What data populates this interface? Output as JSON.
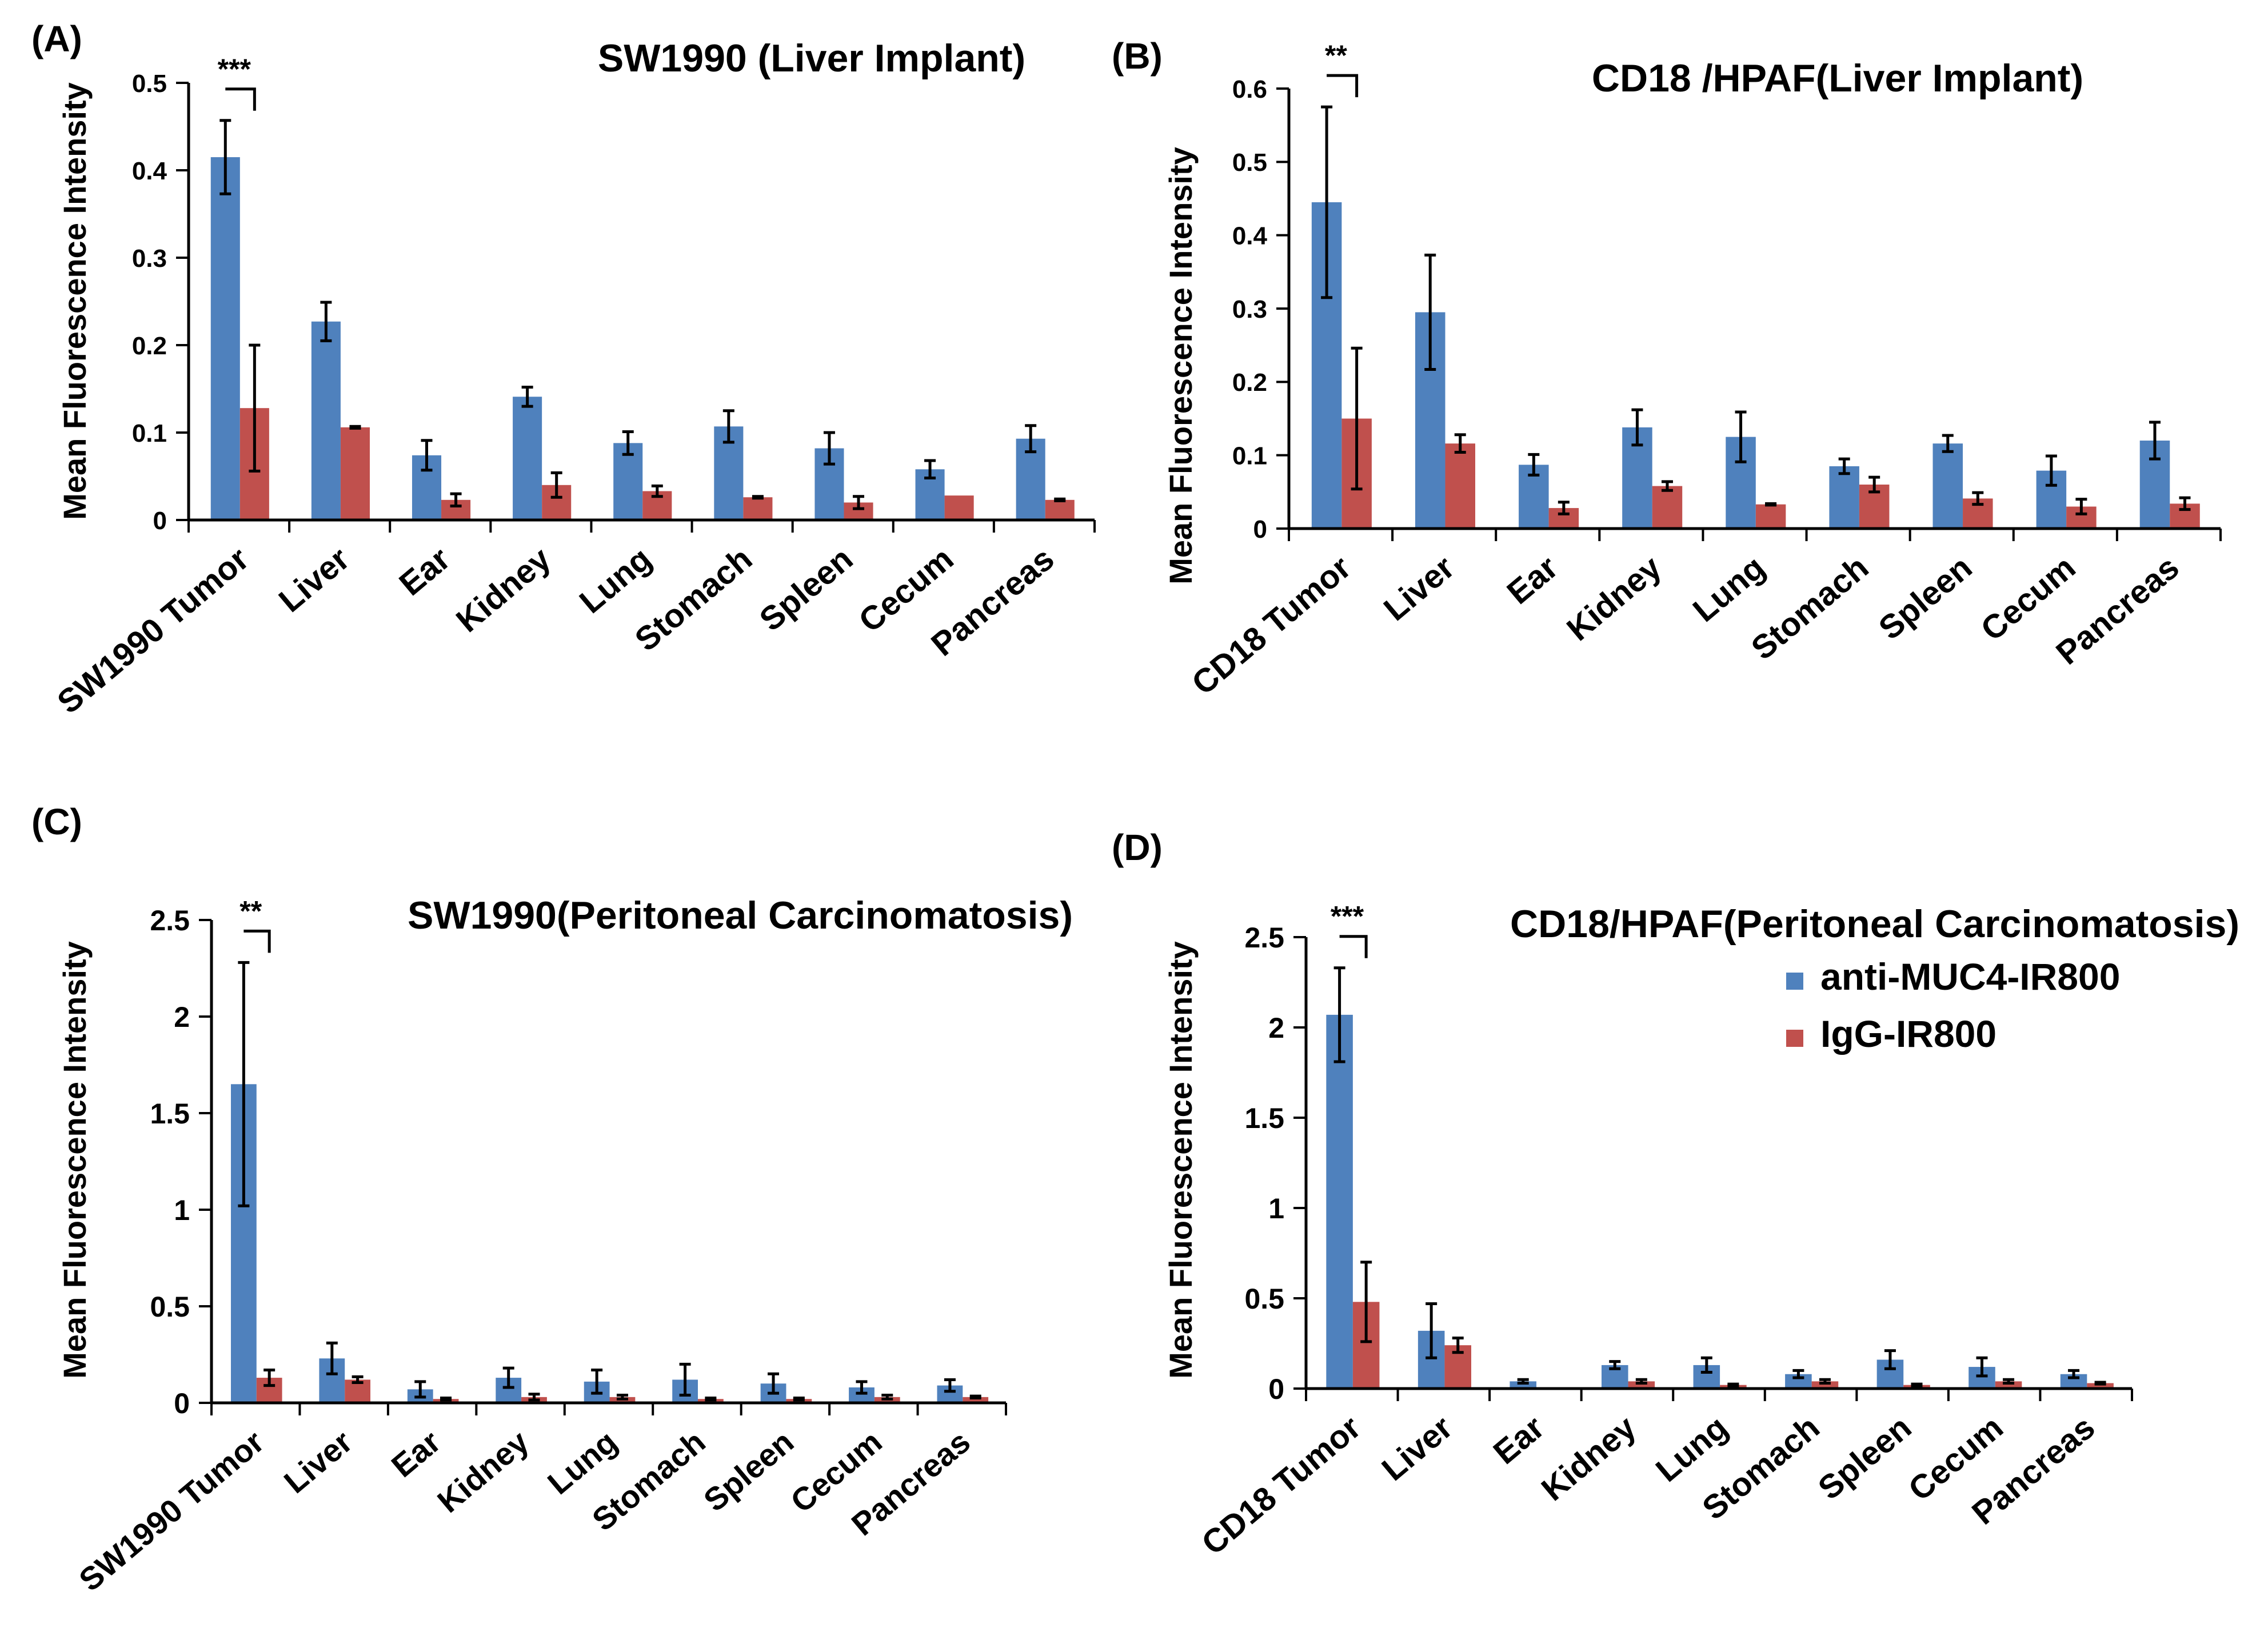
{
  "colors": {
    "series_a": "#4F81BD",
    "series_b": "#C0504D",
    "axis": "#000000"
  },
  "legend": {
    "panel": 3,
    "items": [
      "anti-MUC4-IR800",
      "IgG-IR800"
    ]
  },
  "chart_data": [
    {
      "type": "bar",
      "panel_label": "(A)",
      "title": "SW1990 (Liver Implant)",
      "ylabel": "Mean Fluorescence Intensity",
      "xlabel": "",
      "ylim": [
        0,
        0.5
      ],
      "yticks": [
        "0",
        "0.1",
        "0.2",
        "0.3",
        "0.4",
        "0.5"
      ],
      "categories": [
        "SW1990 Tumor",
        "Liver",
        "Ear",
        "Kidney",
        "Lung",
        "Stomach",
        "Spleen",
        "Cecum",
        "Pancreas"
      ],
      "series": [
        {
          "name": "anti-MUC4-IR800",
          "values": [
            0.415,
            0.227,
            0.074,
            0.141,
            0.088,
            0.107,
            0.082,
            0.058,
            0.093
          ],
          "errors": [
            0.042,
            0.022,
            0.017,
            0.011,
            0.013,
            0.018,
            0.018,
            0.01,
            0.015
          ]
        },
        {
          "name": "IgG-IR800",
          "values": [
            0.128,
            0.106,
            0.023,
            0.04,
            0.033,
            0.026,
            0.02,
            0.028,
            0.023
          ],
          "errors": [
            0.072,
            0.001,
            0.007,
            0.014,
            0.006,
            0.001,
            0.007,
            0.0,
            0.001
          ]
        }
      ],
      "significance": {
        "label": "***",
        "category_index": 0
      }
    },
    {
      "type": "bar",
      "panel_label": "(B)",
      "title": "CD18 /HPAF(Liver Implant)",
      "ylabel": "Mean Fluorescence Intensity",
      "xlabel": "",
      "ylim": [
        0,
        0.6
      ],
      "yticks": [
        "0",
        "0.1",
        "0.2",
        "0.3",
        "0.4",
        "0.5",
        "0.6"
      ],
      "categories": [
        "CD18 Tumor",
        "Liver",
        "Ear",
        "Kidney",
        "Lung",
        "Stomach",
        "Spleen",
        "Cecum",
        "Pancreas"
      ],
      "series": [
        {
          "name": "anti-MUC4-IR800",
          "values": [
            0.445,
            0.295,
            0.087,
            0.138,
            0.125,
            0.085,
            0.116,
            0.079,
            0.12
          ],
          "errors": [
            0.13,
            0.078,
            0.014,
            0.024,
            0.034,
            0.01,
            0.011,
            0.02,
            0.025
          ]
        },
        {
          "name": "IgG-IR800",
          "values": [
            0.15,
            0.116,
            0.028,
            0.058,
            0.033,
            0.06,
            0.041,
            0.03,
            0.034
          ],
          "errors": [
            0.096,
            0.012,
            0.008,
            0.006,
            0.001,
            0.01,
            0.008,
            0.01,
            0.008
          ]
        }
      ],
      "significance": {
        "label": "**",
        "category_index": 0
      }
    },
    {
      "type": "bar",
      "panel_label": "(C)",
      "title": "SW1990(Peritoneal Carcinomatosis)",
      "ylabel": "Mean Fluorescence Intensity",
      "xlabel": "",
      "ylim": [
        0,
        2.5
      ],
      "yticks": [
        "0",
        "0.5",
        "1",
        "1.5",
        "2",
        "2.5"
      ],
      "categories": [
        "SW1990 Tumor",
        "Liver",
        "Ear",
        "Kidney",
        "Lung",
        "Stomach",
        "Spleen",
        "Cecum",
        "Pancreas"
      ],
      "series": [
        {
          "name": "anti-MUC4-IR800",
          "values": [
            1.65,
            0.23,
            0.07,
            0.13,
            0.11,
            0.12,
            0.1,
            0.08,
            0.09
          ],
          "errors": [
            0.63,
            0.08,
            0.04,
            0.05,
            0.06,
            0.08,
            0.05,
            0.03,
            0.03
          ]
        },
        {
          "name": "IgG-IR800",
          "values": [
            0.13,
            0.12,
            0.02,
            0.03,
            0.03,
            0.02,
            0.02,
            0.03,
            0.03
          ],
          "errors": [
            0.04,
            0.015,
            0.005,
            0.015,
            0.01,
            0.005,
            0.005,
            0.01,
            0.005
          ]
        }
      ],
      "significance": {
        "label": "**",
        "category_index": 0
      }
    },
    {
      "type": "bar",
      "panel_label": "(D)",
      "title": "CD18/HPAF(Peritoneal Carcinomatosis)",
      "ylabel": "Mean Fluorescence Intensity",
      "xlabel": "",
      "ylim": [
        0,
        2.5
      ],
      "yticks": [
        "0",
        "0.5",
        "1",
        "1.5",
        "2",
        "2.5"
      ],
      "categories": [
        "CD18 Tumor",
        "Liver",
        "Ear",
        "Kidney",
        "Lung",
        "Stomach",
        "Spleen",
        "Cecum",
        "Pancreas"
      ],
      "series": [
        {
          "name": "anti-MUC4-IR800",
          "values": [
            2.07,
            0.32,
            0.04,
            0.13,
            0.13,
            0.08,
            0.16,
            0.12,
            0.08
          ],
          "errors": [
            0.26,
            0.15,
            0.01,
            0.02,
            0.04,
            0.02,
            0.05,
            0.05,
            0.02
          ]
        },
        {
          "name": "IgG-IR800",
          "values": [
            0.48,
            0.24,
            0.0,
            0.04,
            0.02,
            0.04,
            0.02,
            0.04,
            0.03
          ],
          "errors": [
            0.22,
            0.04,
            0.0,
            0.01,
            0.005,
            0.01,
            0.005,
            0.01,
            0.005
          ]
        }
      ],
      "significance": {
        "label": "***",
        "category_index": 0
      }
    }
  ]
}
